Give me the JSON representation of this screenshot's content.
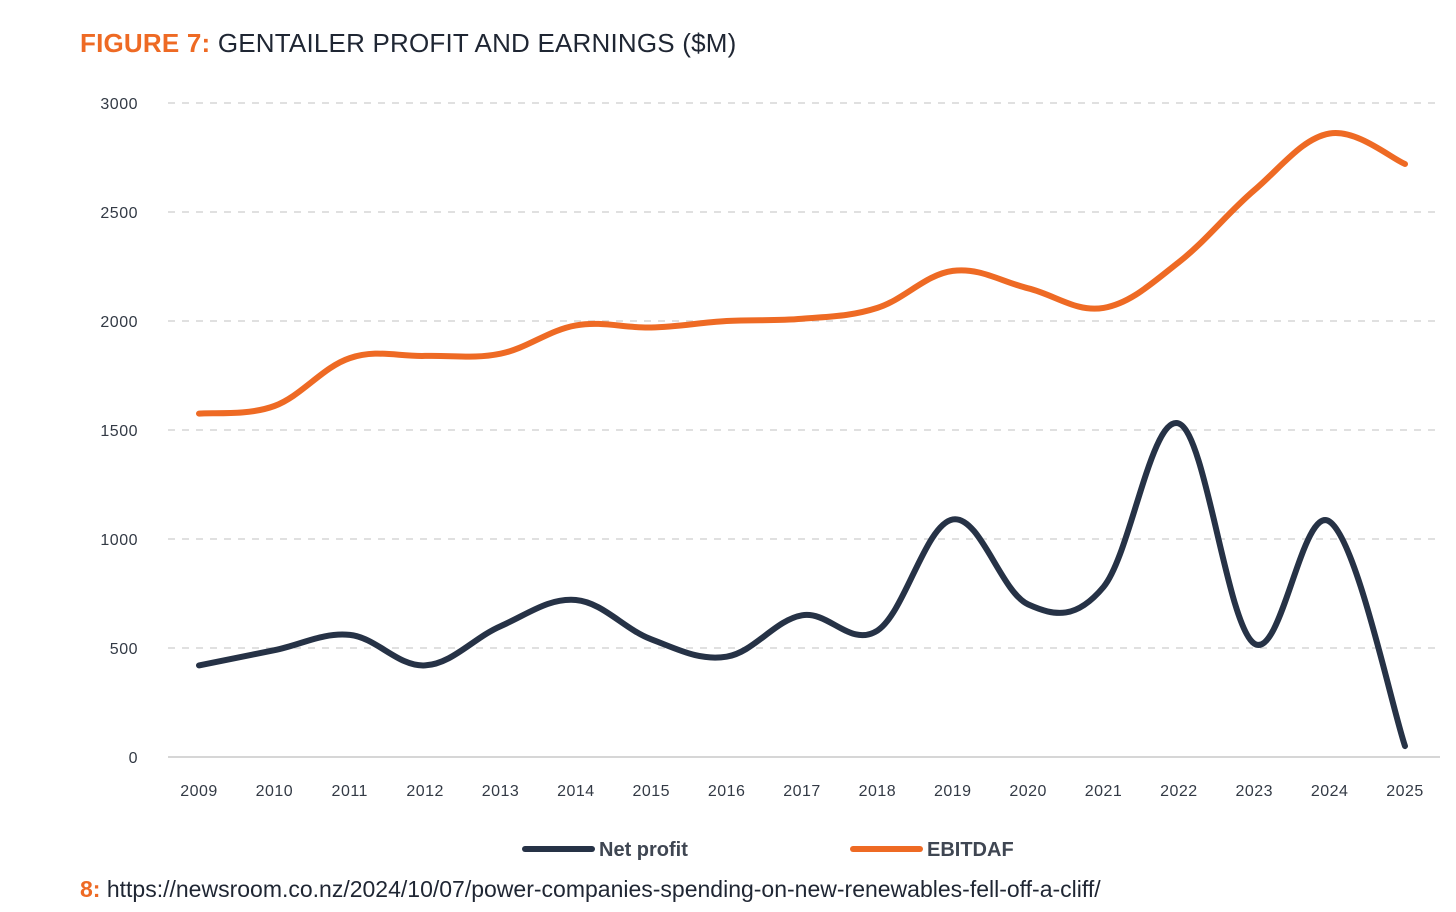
{
  "figure": {
    "label": "FIGURE 7:",
    "title": "GENTAILER PROFIT AND EARNINGS ($M)"
  },
  "footnote": {
    "number": "8:",
    "text": "https://newsroom.co.nz/2024/10/07/power-companies-spending-on-new-renewables-fell-off-a-cliff/"
  },
  "colors": {
    "accent": "#ee6a24",
    "net_profit": "#263246",
    "grid": "#d6d6d6"
  },
  "chart_data": {
    "type": "line",
    "title": "GENTAILER PROFIT AND EARNINGS ($M)",
    "xlabel": "",
    "ylabel": "",
    "x": [
      "2009",
      "2010",
      "2011",
      "2012",
      "2013",
      "2014",
      "2015",
      "2016",
      "2017",
      "2018",
      "2019",
      "2020",
      "2021",
      "2022",
      "2023",
      "2024",
      "2025"
    ],
    "ylim": [
      0,
      3000
    ],
    "yticks": [
      0,
      500,
      1000,
      1500,
      2000,
      2500,
      3000
    ],
    "grid": true,
    "legend_position": "bottom",
    "series": [
      {
        "name": "Net profit",
        "color": "#263246",
        "values": [
          420,
          490,
          560,
          420,
          600,
          720,
          540,
          460,
          650,
          580,
          1090,
          700,
          780,
          1530,
          520,
          1080,
          50
        ]
      },
      {
        "name": "EBITDAF",
        "color": "#ee6a24",
        "values": [
          1575,
          1610,
          1830,
          1840,
          1850,
          1980,
          1970,
          2000,
          2010,
          2060,
          2230,
          2150,
          2060,
          2270,
          2600,
          2860,
          2720
        ]
      }
    ]
  }
}
